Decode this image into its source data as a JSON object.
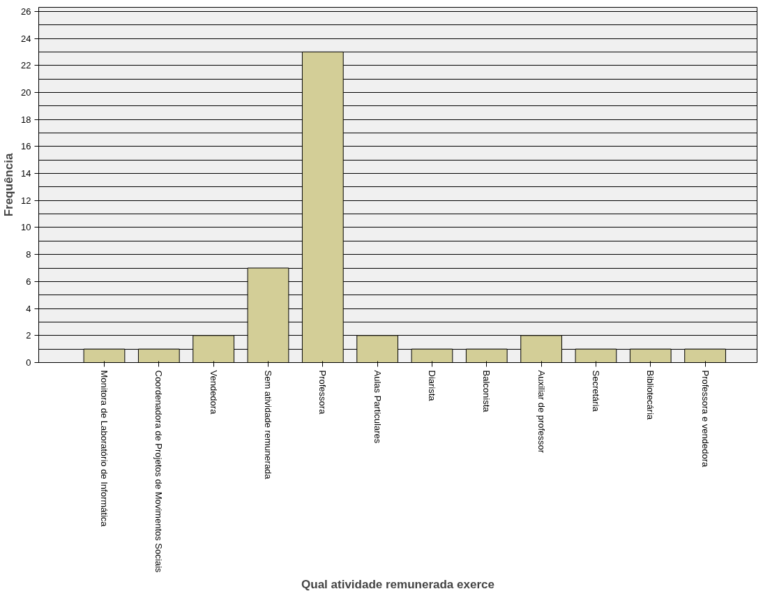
{
  "chart_data": {
    "type": "bar",
    "xlabel": "Qual atividade remunerada exerce",
    "ylabel": "Frequência",
    "categories": [
      "Monitora de Laboratório de Informática",
      "Coordenadora de Projetos de Movimentos Sociais",
      "Vendedora",
      "Sem atividade remunerada",
      "Professora",
      "Aulas Particulares",
      "Diarista",
      "Balconista",
      "Auxiliar de professor",
      "Secretária",
      "Bibliotecária",
      "Professora e vendedora"
    ],
    "values": [
      1,
      1,
      2,
      7,
      23,
      2,
      1,
      1,
      2,
      1,
      1,
      1
    ],
    "color": "#d3ce97",
    "ylim": [
      0,
      26.3
    ],
    "yticks": [
      0,
      2,
      4,
      6,
      8,
      10,
      12,
      14,
      16,
      18,
      20,
      22,
      24,
      26
    ],
    "grid": "y"
  }
}
